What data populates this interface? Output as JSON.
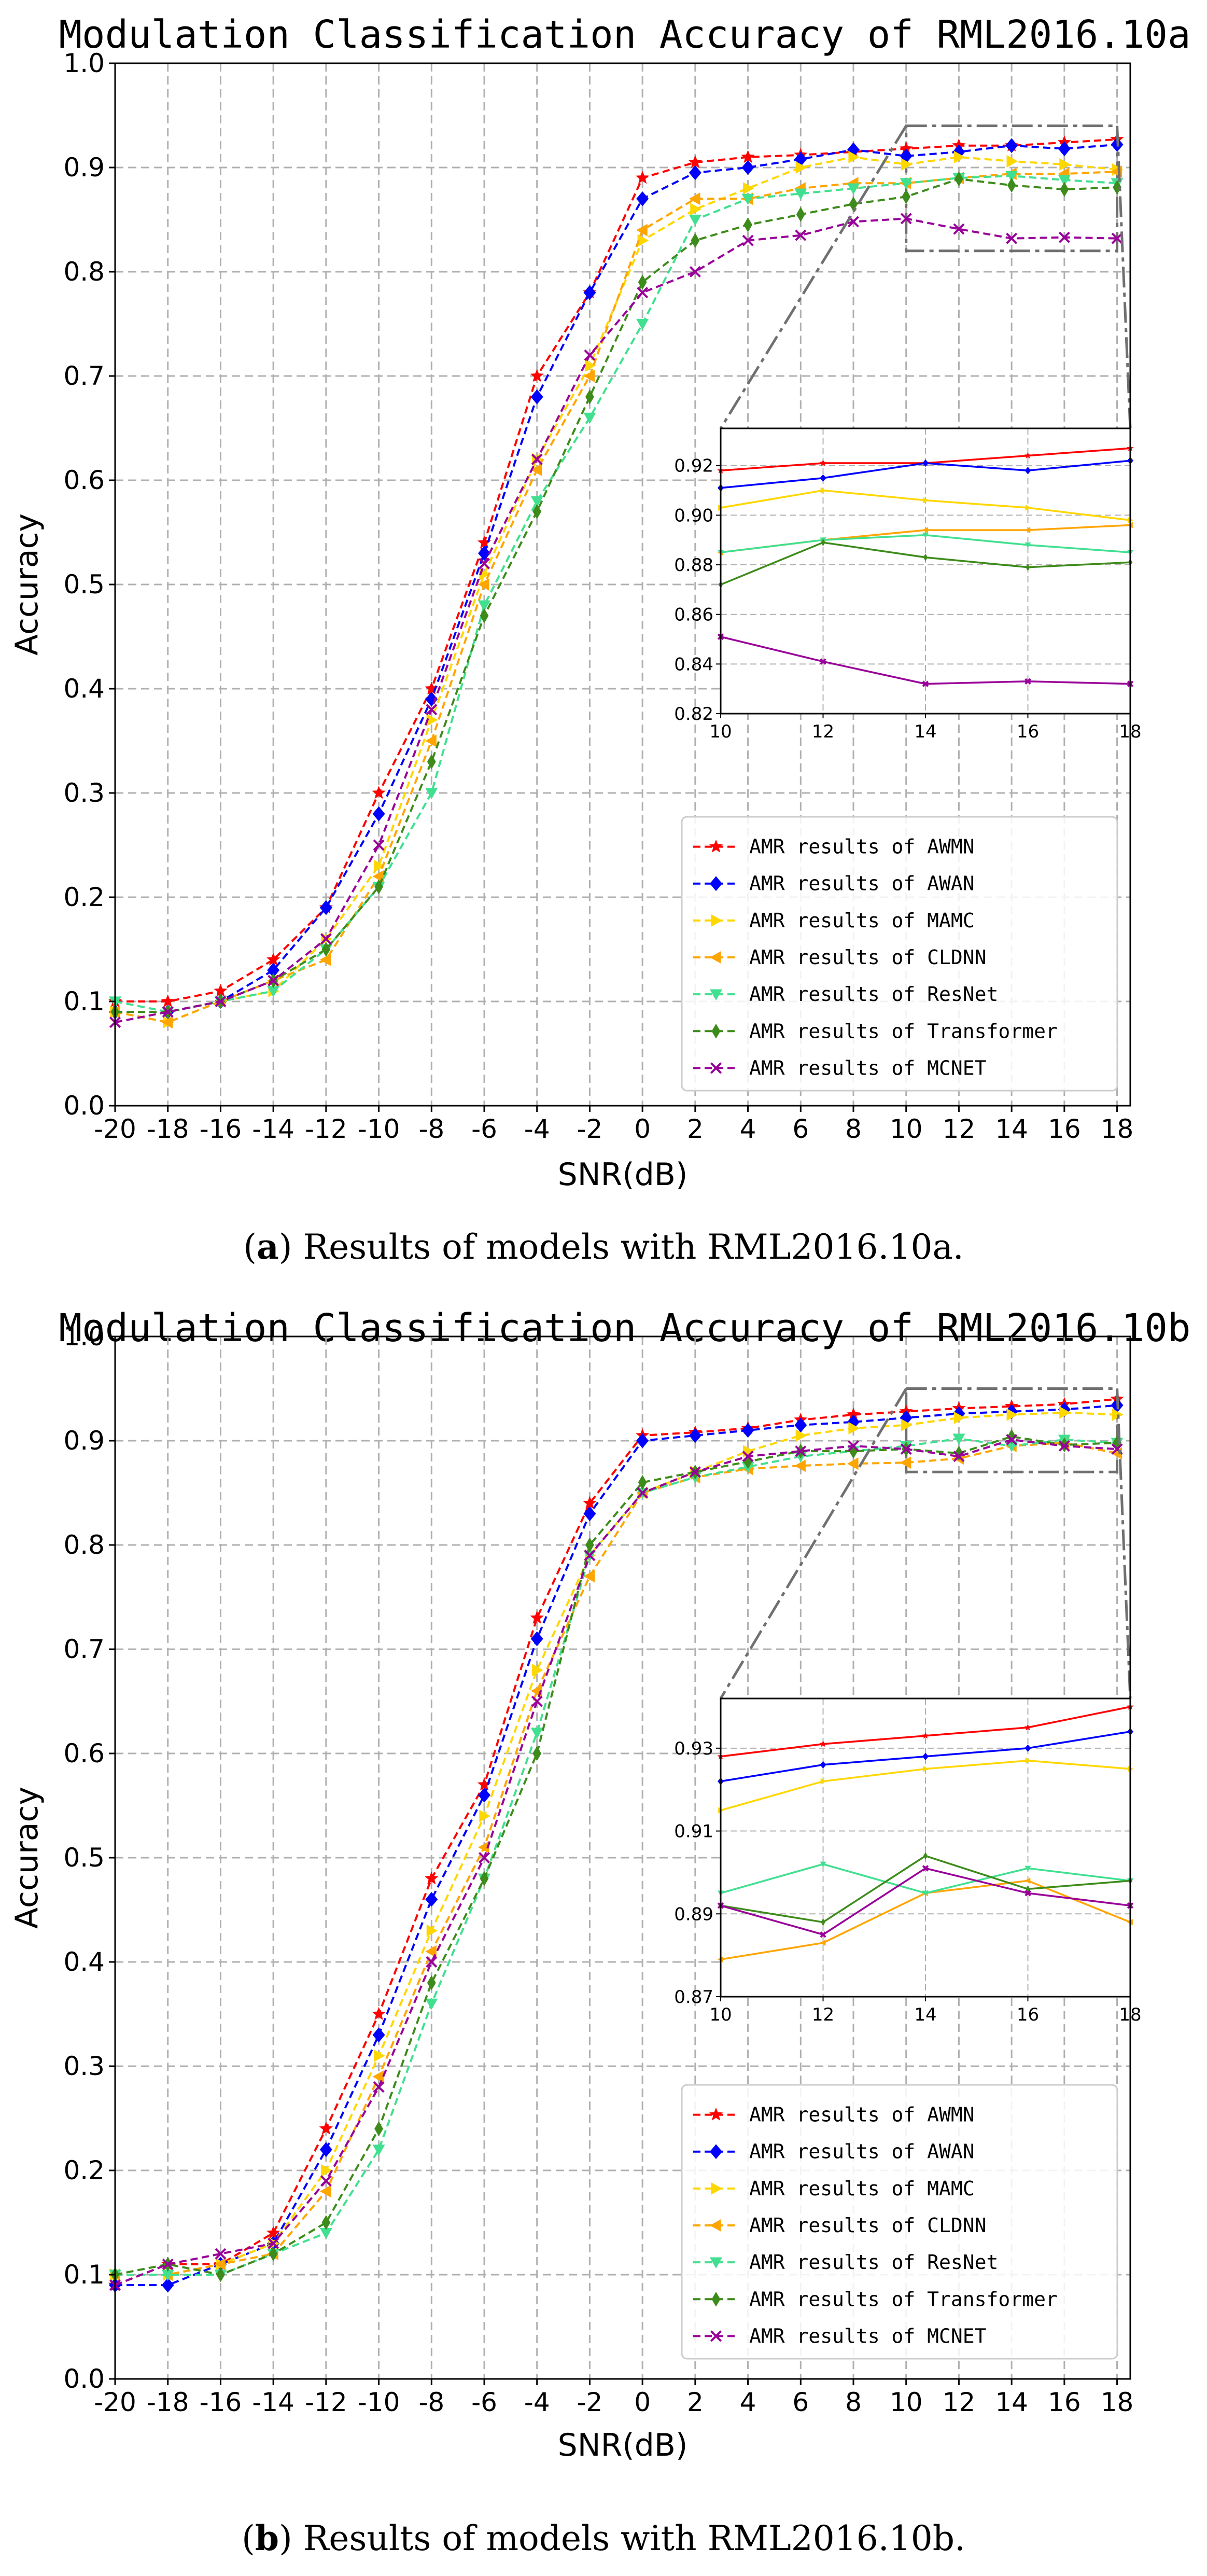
{
  "figure": {
    "captions": [
      {
        "letter": "a",
        "text": "Results of models with RML2016.10a."
      },
      {
        "letter": "b",
        "text": "Results of models with RML2016.10b."
      }
    ]
  },
  "chart_data": [
    {
      "type": "line",
      "title": "Modulation Classification Accuracy of RML2016.10a",
      "xlabel": "SNR(dB)",
      "ylabel": "Accuracy",
      "x": [
        -20,
        -18,
        -16,
        -14,
        -12,
        -10,
        -8,
        -6,
        -4,
        -2,
        0,
        2,
        4,
        6,
        8,
        10,
        12,
        14,
        16,
        18
      ],
      "xticks": [
        -20,
        -18,
        -16,
        -14,
        -12,
        -10,
        -8,
        -6,
        -4,
        -2,
        0,
        2,
        4,
        6,
        8,
        10,
        12,
        14,
        16,
        18
      ],
      "yticks": [
        0.0,
        0.1,
        0.2,
        0.3,
        0.4,
        0.5,
        0.6,
        0.7,
        0.8,
        0.9,
        1.0
      ],
      "xlim": [
        -20,
        18.5
      ],
      "ylim": [
        0,
        1
      ],
      "grid": true,
      "legend_position": "lower-right",
      "series": [
        {
          "name": "AMR results of AWMN",
          "color": "#ff0000",
          "marker": "star",
          "values": [
            0.1,
            0.1,
            0.11,
            0.14,
            0.19,
            0.3,
            0.4,
            0.54,
            0.7,
            0.78,
            0.89,
            0.905,
            0.91,
            0.912,
            0.915,
            0.918,
            0.921,
            0.921,
            0.924,
            0.927
          ]
        },
        {
          "name": "AMR results of AWAN",
          "color": "#0000ff",
          "marker": "diamond",
          "values": [
            0.09,
            0.09,
            0.1,
            0.13,
            0.19,
            0.28,
            0.39,
            0.53,
            0.68,
            0.78,
            0.87,
            0.895,
            0.9,
            0.908,
            0.917,
            0.911,
            0.915,
            0.921,
            0.918,
            0.922
          ]
        },
        {
          "name": "AMR results of MAMC",
          "color": "#ffd700",
          "marker": "triangle-right",
          "values": [
            0.09,
            0.08,
            0.1,
            0.11,
            0.16,
            0.23,
            0.37,
            0.51,
            0.62,
            0.71,
            0.83,
            0.86,
            0.88,
            0.9,
            0.91,
            0.903,
            0.91,
            0.906,
            0.903,
            0.898
          ]
        },
        {
          "name": "AMR results of CLDNN",
          "color": "#ffa500",
          "marker": "triangle-left",
          "values": [
            0.09,
            0.08,
            0.1,
            0.12,
            0.14,
            0.22,
            0.35,
            0.5,
            0.61,
            0.7,
            0.84,
            0.87,
            0.87,
            0.88,
            0.885,
            0.885,
            0.89,
            0.894,
            0.894,
            0.896
          ]
        },
        {
          "name": "AMR results of ResNet",
          "color": "#40e090",
          "marker": "triangle-down",
          "values": [
            0.1,
            0.09,
            0.1,
            0.11,
            0.15,
            0.21,
            0.3,
            0.48,
            0.58,
            0.66,
            0.75,
            0.85,
            0.87,
            0.875,
            0.88,
            0.885,
            0.89,
            0.892,
            0.888,
            0.885
          ]
        },
        {
          "name": "AMR results of Transformer",
          "color": "#3d8b1a",
          "marker": "thin-diamond",
          "values": [
            0.09,
            0.09,
            0.1,
            0.12,
            0.15,
            0.21,
            0.33,
            0.47,
            0.57,
            0.68,
            0.79,
            0.83,
            0.845,
            0.855,
            0.865,
            0.872,
            0.889,
            0.883,
            0.879,
            0.881
          ]
        },
        {
          "name": "AMR results of MCNET",
          "color": "#990099",
          "marker": "x",
          "values": [
            0.08,
            0.09,
            0.1,
            0.12,
            0.16,
            0.25,
            0.38,
            0.52,
            0.62,
            0.72,
            0.78,
            0.8,
            0.83,
            0.835,
            0.848,
            0.851,
            0.841,
            0.832,
            0.833,
            0.832
          ]
        }
      ],
      "inset": {
        "xlim": [
          10,
          18
        ],
        "ylim": [
          0.82,
          0.935
        ],
        "xticks": [
          10,
          12,
          14,
          16,
          18
        ],
        "yticks": [
          0.82,
          0.84,
          0.86,
          0.88,
          0.9,
          0.92
        ],
        "ytick_labels": [
          "0.82",
          "0.84",
          "0.86",
          "0.88",
          "0.90",
          "0.92"
        ],
        "source_ylim": [
          0.82,
          0.94
        ]
      }
    },
    {
      "type": "line",
      "title": "Modulation Classification Accuracy of RML2016.10b",
      "xlabel": "SNR(dB)",
      "ylabel": "Accuracy",
      "x": [
        -20,
        -18,
        -16,
        -14,
        -12,
        -10,
        -8,
        -6,
        -4,
        -2,
        0,
        2,
        4,
        6,
        8,
        10,
        12,
        14,
        16,
        18
      ],
      "xticks": [
        -20,
        -18,
        -16,
        -14,
        -12,
        -10,
        -8,
        -6,
        -4,
        -2,
        0,
        2,
        4,
        6,
        8,
        10,
        12,
        14,
        16,
        18
      ],
      "yticks": [
        0.0,
        0.1,
        0.2,
        0.3,
        0.4,
        0.5,
        0.6,
        0.7,
        0.8,
        0.9,
        1.0
      ],
      "xlim": [
        -20,
        18.5
      ],
      "ylim": [
        0,
        1
      ],
      "grid": true,
      "legend_position": "lower-right",
      "series": [
        {
          "name": "AMR results of AWMN",
          "color": "#ff0000",
          "marker": "star",
          "values": [
            0.09,
            0.11,
            0.11,
            0.14,
            0.24,
            0.35,
            0.48,
            0.57,
            0.73,
            0.84,
            0.905,
            0.908,
            0.912,
            0.92,
            0.925,
            0.928,
            0.931,
            0.933,
            0.935,
            0.94
          ]
        },
        {
          "name": "AMR results of AWAN",
          "color": "#0000ff",
          "marker": "diamond",
          "values": [
            0.09,
            0.09,
            0.11,
            0.13,
            0.22,
            0.33,
            0.46,
            0.56,
            0.71,
            0.83,
            0.9,
            0.905,
            0.91,
            0.915,
            0.918,
            0.922,
            0.926,
            0.928,
            0.93,
            0.934
          ]
        },
        {
          "name": "AMR results of MAMC",
          "color": "#ffd700",
          "marker": "triangle-right",
          "values": [
            0.1,
            0.1,
            0.11,
            0.13,
            0.2,
            0.31,
            0.43,
            0.54,
            0.68,
            0.79,
            0.85,
            0.87,
            0.89,
            0.905,
            0.912,
            0.915,
            0.922,
            0.925,
            0.927,
            0.925
          ]
        },
        {
          "name": "AMR results of CLDNN",
          "color": "#ffa500",
          "marker": "triangle-left",
          "values": [
            0.1,
            0.1,
            0.11,
            0.12,
            0.18,
            0.29,
            0.41,
            0.51,
            0.66,
            0.77,
            0.85,
            0.865,
            0.873,
            0.876,
            0.878,
            0.879,
            0.883,
            0.895,
            0.898,
            0.888
          ]
        },
        {
          "name": "AMR results of ResNet",
          "color": "#40e090",
          "marker": "triangle-down",
          "values": [
            0.1,
            0.1,
            0.1,
            0.12,
            0.14,
            0.22,
            0.36,
            0.48,
            0.62,
            0.79,
            0.85,
            0.865,
            0.875,
            0.885,
            0.89,
            0.895,
            0.902,
            0.895,
            0.901,
            0.898
          ]
        },
        {
          "name": "AMR results of Transformer",
          "color": "#3d8b1a",
          "marker": "thin-diamond",
          "values": [
            0.1,
            0.11,
            0.1,
            0.12,
            0.15,
            0.24,
            0.38,
            0.48,
            0.6,
            0.8,
            0.86,
            0.87,
            0.88,
            0.89,
            0.89,
            0.892,
            0.888,
            0.904,
            0.896,
            0.898
          ]
        },
        {
          "name": "AMR results of MCNET",
          "color": "#990099",
          "marker": "x",
          "values": [
            0.09,
            0.11,
            0.12,
            0.13,
            0.19,
            0.28,
            0.4,
            0.5,
            0.65,
            0.79,
            0.85,
            0.87,
            0.885,
            0.89,
            0.895,
            0.892,
            0.885,
            0.901,
            0.895,
            0.892
          ]
        }
      ],
      "inset": {
        "xlim": [
          10,
          18
        ],
        "ylim": [
          0.87,
          0.942
        ],
        "xticks": [
          10,
          12,
          14,
          16,
          18
        ],
        "yticks": [
          0.87,
          0.89,
          0.91,
          0.93
        ],
        "ytick_labels": [
          "0.87",
          "0.89",
          "0.91",
          "0.93"
        ],
        "source_ylim": [
          0.87,
          0.95
        ]
      }
    }
  ]
}
